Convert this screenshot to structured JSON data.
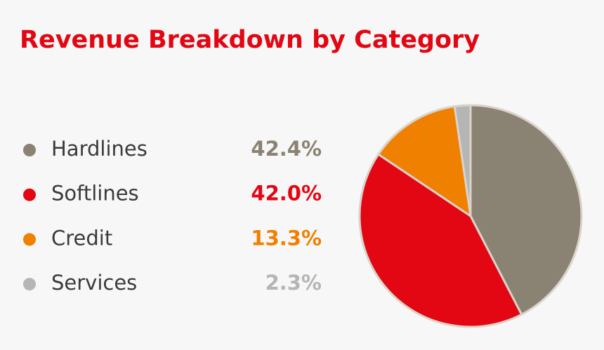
{
  "chart_data": {
    "type": "pie",
    "title": "Revenue Breakdown by Category",
    "categories": [
      "Hardlines",
      "Softlines",
      "Credit",
      "Services"
    ],
    "values": [
      42.4,
      42.0,
      13.3,
      2.3
    ],
    "value_labels": [
      "42.4%",
      "42.0%",
      "13.3%",
      "2.3%"
    ],
    "colors": [
      "#8a8272",
      "#e30613",
      "#f08000",
      "#b5b5b5"
    ]
  }
}
